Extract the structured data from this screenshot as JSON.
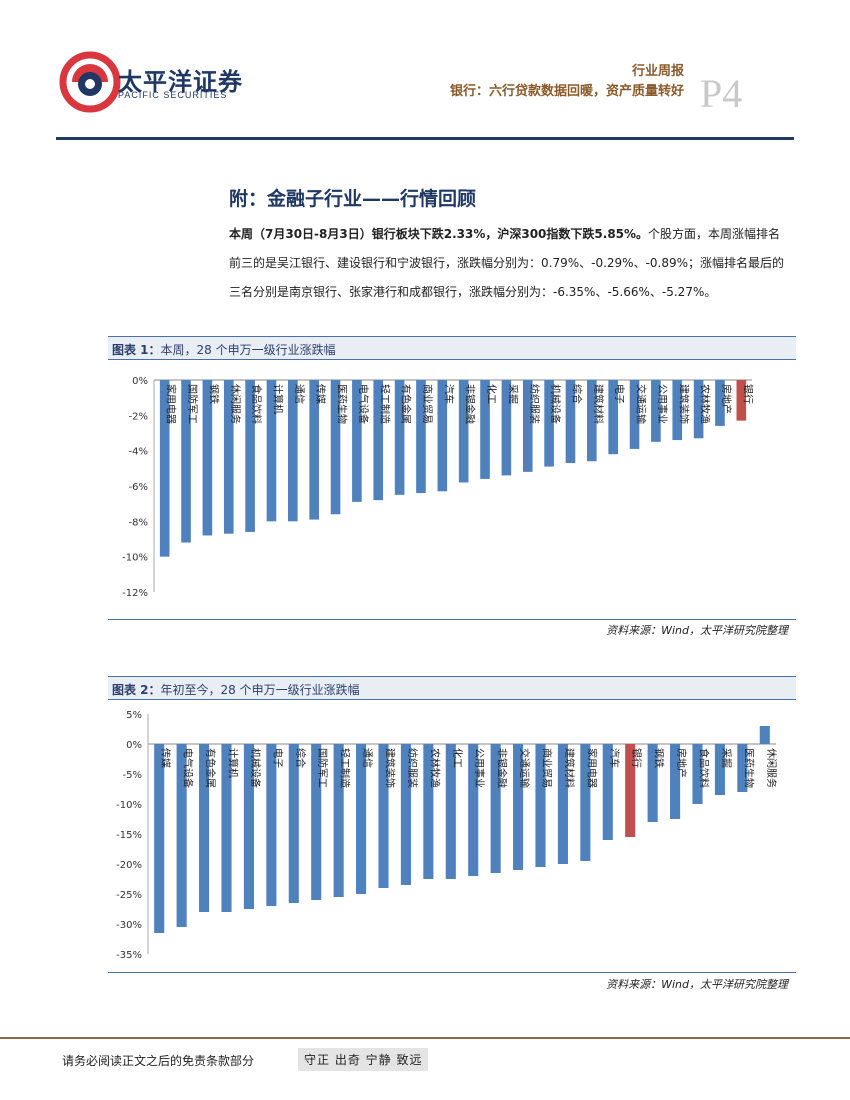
{
  "header": {
    "logo_cn": "太平洋证券",
    "logo_en": "PACIFIC SECURITIES",
    "report_type": "行业周报",
    "report_title": "银行：六行贷款数据回暖，资产质量转好",
    "page_label": "P4"
  },
  "section_title": "附：金融子行业——行情回顾",
  "paragraph": {
    "bold_part": "本周（7月30日-8月3日）银行板块下跌2.33%，沪深300指数下跌5.85%。",
    "normal_part": "个股方面，本周涨幅排名前三的是吴江银行、建设银行和宁波银行，涨跌幅分别为：0.79%、-0.29%、-0.89%；涨幅排名最后的三名分别是南京银行、张家港行和成都银行，涨跌幅分别为：-6.35%、-5.66%、-5.27%。"
  },
  "figure1": {
    "label": "图表 1：",
    "title": "本周，28 个申万一级行业涨跌幅",
    "source": "资料来源：Wind，太平洋研究院整理"
  },
  "figure2": {
    "label": "图表 2：",
    "title": "年初至今，28 个申万一级行业涨跌幅",
    "source": "资料来源：Wind，太平洋研究院整理"
  },
  "chart_data": [
    {
      "type": "bar",
      "categories": [
        "家用电器",
        "国防军工",
        "钢铁",
        "休闲服务",
        "食品饮料",
        "计算机",
        "通信",
        "传媒",
        "医药生物",
        "电气设备",
        "轻工制造",
        "有色金属",
        "商业贸易",
        "汽车",
        "非银金融",
        "化工",
        "采掘",
        "纺织服装",
        "机械设备",
        "综合",
        "建筑材料",
        "电子",
        "交通运输",
        "公用事业",
        "建筑装饰",
        "农林牧渔",
        "房地产",
        "银行"
      ],
      "values": [
        -10.0,
        -9.2,
        -8.8,
        -8.7,
        -8.6,
        -8.0,
        -8.0,
        -7.9,
        -7.6,
        -6.9,
        -6.8,
        -6.5,
        -6.4,
        -6.3,
        -5.8,
        -5.6,
        -5.4,
        -5.2,
        -4.9,
        -4.7,
        -4.6,
        -4.2,
        -3.9,
        -3.5,
        -3.4,
        -3.3,
        -2.6,
        -2.3
      ],
      "highlight": "银行",
      "yticks": [
        "0%",
        "-2%",
        "-4%",
        "-6%",
        "-8%",
        "-10%",
        "-12%"
      ],
      "ylim": [
        -12,
        0
      ],
      "colors": {
        "bar": "#4f81bd",
        "highlight": "#c0504d"
      }
    },
    {
      "type": "bar",
      "categories": [
        "传媒",
        "电气设备",
        "有色金属",
        "计算机",
        "机械设备",
        "电子",
        "综合",
        "国防军工",
        "轻工制造",
        "通信",
        "建筑装饰",
        "纺织服装",
        "农林牧渔",
        "化工",
        "公用事业",
        "非银金融",
        "交通运输",
        "商业贸易",
        "建筑材料",
        "家用电器",
        "汽车",
        "银行",
        "钢铁",
        "房地产",
        "食品饮料",
        "采掘",
        "医药生物",
        "休闲服务"
      ],
      "values": [
        -31.5,
        -30.5,
        -28.0,
        -28.0,
        -27.5,
        -27.0,
        -26.5,
        -26.0,
        -25.5,
        -25.0,
        -24.0,
        -23.5,
        -22.5,
        -22.5,
        -22.0,
        -21.5,
        -21.0,
        -20.5,
        -20.0,
        -19.5,
        -16.0,
        -15.5,
        -13.0,
        -12.5,
        -10.0,
        -8.5,
        -8.0,
        3.0
      ],
      "highlight": "银行",
      "yticks": [
        "5%",
        "0%",
        "-5%",
        "-10%",
        "-15%",
        "-20%",
        "-25%",
        "-30%",
        "-35%"
      ],
      "ylim": [
        -35,
        5
      ],
      "colors": {
        "bar": "#4f81bd",
        "highlight": "#c0504d"
      }
    }
  ],
  "footer": {
    "disclaimer": "请务必阅读正文之后的免责条款部分",
    "motto": "守正 出奇 宁静 致远"
  }
}
